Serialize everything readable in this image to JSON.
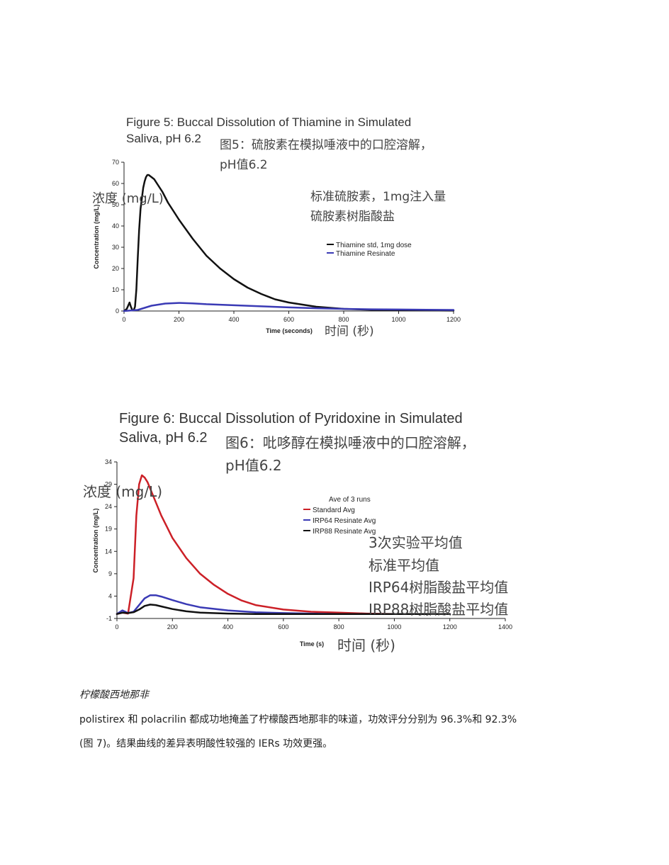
{
  "figure5": {
    "title_line1": "Figure 5: Buccal Dissolution of Thiamine in Simulated",
    "title_line2": "Saliva, pH 6.2",
    "zh_title_line1": "图5：硫胺素在模拟唾液中的口腔溶解，",
    "zh_title_line2": "pH值6.2",
    "zh_ylabel": "浓度 (mg/L)",
    "zh_legend_line1": "标准硫胺素，1mg注入量",
    "zh_legend_line2": "硫胺素树脂酸盐",
    "zh_xlabel": "时间 (秒)"
  },
  "figure6": {
    "title_line1": "Figure 6: Buccal Dissolution of Pyridoxine in Simulated",
    "title_line2": "Saliva, pH 6.2",
    "zh_title_line1": "图6：吡哆醇在模拟唾液中的口腔溶解，",
    "zh_title_line2": "pH值6.2",
    "zh_ylabel": "浓度 (mg/L)",
    "zh_legend_line1": "3次实验平均值",
    "zh_legend_line2": "标准平均值",
    "zh_legend_line3": "IRP64树脂酸盐平均值",
    "zh_legend_line4": "IRP88树脂酸盐平均值",
    "zh_xlabel": "时间 (秒)"
  },
  "chart_data": [
    {
      "type": "line",
      "xlabel": "Time (seconds)",
      "ylabel": "Concentration (mg/L)",
      "xlim": [
        0,
        1200
      ],
      "ylim": [
        0,
        70
      ],
      "xticks": [
        0,
        200,
        400,
        600,
        800,
        1000,
        1200
      ],
      "yticks": [
        0,
        10,
        20,
        30,
        40,
        50,
        60,
        70
      ],
      "legend_position": "right",
      "series": [
        {
          "name": "Thiamine std, 1mg dose",
          "color": "#111111",
          "x": [
            0,
            10,
            20,
            25,
            30,
            35,
            40,
            45,
            50,
            55,
            60,
            65,
            70,
            75,
            80,
            85,
            90,
            95,
            100,
            110,
            120,
            140,
            160,
            180,
            200,
            250,
            300,
            350,
            400,
            450,
            500,
            550,
            600,
            650,
            700,
            750,
            800,
            850,
            900,
            1000,
            1100,
            1200
          ],
          "y": [
            0,
            1,
            4,
            2,
            0.5,
            0.3,
            2,
            10,
            25,
            38,
            48,
            53,
            58,
            61,
            63,
            64,
            64,
            63.5,
            63,
            62,
            60,
            56,
            51,
            47,
            43,
            34,
            26,
            20,
            15,
            11,
            8,
            5.5,
            4,
            3,
            2,
            1.5,
            1,
            0.8,
            0.6,
            0.4,
            0.3,
            0.2
          ]
        },
        {
          "name": "Thiamine Resinate",
          "color": "#3a3ab5",
          "x": [
            0,
            50,
            100,
            150,
            200,
            250,
            300,
            400,
            500,
            600,
            700,
            800,
            900,
            1000,
            1100,
            1200
          ],
          "y": [
            0,
            0.5,
            2.5,
            3.5,
            3.8,
            3.6,
            3.2,
            2.7,
            2.2,
            1.7,
            1.3,
            1,
            0.8,
            0.7,
            0.6,
            0.5
          ]
        }
      ]
    },
    {
      "type": "line",
      "xlabel": "Time (s)",
      "ylabel": "Concentration (mg/L)",
      "xlim": [
        0,
        1400
      ],
      "ylim": [
        -1,
        34
      ],
      "xticks": [
        0,
        200,
        400,
        600,
        800,
        1000,
        1200,
        1400
      ],
      "yticks": [
        -1,
        4,
        9,
        14,
        19,
        24,
        29,
        34
      ],
      "legend_title": "Ave of 3 runs",
      "legend_position": "right",
      "series": [
        {
          "name": "Standard Avg",
          "color": "#cc2027",
          "x": [
            0,
            20,
            40,
            60,
            70,
            80,
            90,
            100,
            110,
            120,
            140,
            160,
            180,
            200,
            250,
            300,
            350,
            400,
            450,
            500,
            600,
            700,
            800,
            900,
            1000,
            1100,
            1200
          ],
          "y": [
            0,
            0.3,
            0.1,
            8,
            22,
            29,
            31,
            30.5,
            29.5,
            28,
            25,
            22,
            19.5,
            17,
            12.5,
            9,
            6.5,
            4.5,
            3,
            2,
            1,
            0.5,
            0.3,
            0.1,
            0,
            0,
            0
          ]
        },
        {
          "name": "IRP64 Resinate Avg",
          "color": "#3a3ab5",
          "x": [
            0,
            20,
            40,
            60,
            80,
            100,
            120,
            140,
            160,
            200,
            250,
            300,
            400,
            500,
            600,
            700,
            800,
            900,
            1000,
            1100,
            1200
          ],
          "y": [
            0,
            0.8,
            0.2,
            0.5,
            2,
            3.5,
            4.2,
            4.2,
            3.9,
            3.1,
            2.2,
            1.5,
            0.8,
            0.4,
            0.2,
            0.1,
            0,
            0,
            0,
            0,
            0
          ]
        },
        {
          "name": "IRP88 Resinate Avg",
          "color": "#111111",
          "x": [
            0,
            20,
            40,
            60,
            80,
            100,
            120,
            140,
            160,
            200,
            250,
            300,
            400,
            500,
            600,
            700,
            800,
            900,
            1000,
            1100,
            1200
          ],
          "y": [
            0,
            0.3,
            0.2,
            0.4,
            1,
            1.8,
            2.1,
            2,
            1.7,
            1.1,
            0.6,
            0.3,
            0.1,
            0,
            0,
            0,
            0,
            0,
            0,
            0,
            0
          ]
        }
      ]
    }
  ],
  "section": {
    "heading": "柠檬酸西地那非",
    "para_line1": "polistirex 和 polacrilin 都成功地掩盖了柠檬酸西地那非的味道，功效评分分别为 96.3%和 92.3%",
    "para_line2": "(图 7)。结果曲线的差异表明酸性较强的 IERs 功效更强。"
  }
}
